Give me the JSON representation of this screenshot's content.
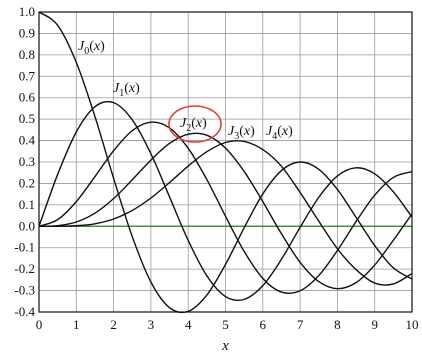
{
  "chart_data": {
    "type": "line",
    "title": "",
    "xlabel": "x",
    "ylabel": "",
    "xlim": [
      0,
      10
    ],
    "ylim": [
      -0.4,
      1.0
    ],
    "grid": true,
    "x_ticks": [
      "0",
      "1",
      "2",
      "3",
      "4",
      "5",
      "6",
      "7",
      "8",
      "9",
      "10"
    ],
    "y_ticks": [
      "1.0",
      "0.9",
      "0.8",
      "0.7",
      "0.6",
      "0.5",
      "0.4",
      "0.3",
      "0.2",
      "0.1",
      "0.0",
      "-0.1",
      "-0.2",
      "-0.3",
      "-0.4"
    ],
    "x": [
      0,
      0.5,
      1,
      1.5,
      2,
      2.5,
      3,
      3.5,
      4,
      4.5,
      5,
      5.5,
      6,
      6.5,
      7,
      7.5,
      8,
      8.5,
      9,
      9.5,
      10
    ],
    "series": [
      {
        "name": "J0(x)",
        "label_main": "J",
        "label_sub": "0",
        "label_arg": "(x)",
        "values": [
          1.0,
          0.938,
          0.765,
          0.512,
          0.224,
          -0.048,
          -0.26,
          -0.38,
          -0.397,
          -0.321,
          -0.178,
          -0.007,
          0.151,
          0.26,
          0.3,
          0.266,
          0.172,
          0.042,
          -0.09,
          -0.194,
          -0.246
        ]
      },
      {
        "name": "J1(x)",
        "label_main": "J",
        "label_sub": "1",
        "label_arg": "(x)",
        "values": [
          0.0,
          0.242,
          0.44,
          0.558,
          0.577,
          0.497,
          0.339,
          0.137,
          -0.066,
          -0.231,
          -0.328,
          -0.341,
          -0.277,
          -0.154,
          -0.005,
          0.135,
          0.235,
          0.273,
          0.245,
          0.161,
          0.043
        ]
      },
      {
        "name": "J2(x)",
        "label_main": "J",
        "label_sub": "2",
        "label_arg": "(x)",
        "values": [
          0.0,
          0.031,
          0.115,
          0.232,
          0.353,
          0.446,
          0.486,
          0.459,
          0.364,
          0.218,
          0.047,
          -0.117,
          -0.243,
          -0.307,
          -0.301,
          -0.23,
          -0.113,
          0.022,
          0.145,
          0.228,
          0.255
        ]
      },
      {
        "name": "J3(x)",
        "label_main": "J",
        "label_sub": "3",
        "label_arg": "(x)",
        "values": [
          0.0,
          0.003,
          0.02,
          0.061,
          0.129,
          0.217,
          0.309,
          0.387,
          0.43,
          0.425,
          0.365,
          0.256,
          0.115,
          -0.035,
          -0.168,
          -0.258,
          -0.291,
          -0.263,
          -0.181,
          -0.065,
          0.058
        ]
      },
      {
        "name": "J4(x)",
        "label_main": "J",
        "label_sub": "4",
        "label_arg": "(x)",
        "values": [
          0.0,
          0.0002,
          0.0025,
          0.0118,
          0.034,
          0.074,
          0.132,
          0.204,
          0.281,
          0.348,
          0.391,
          0.396,
          0.358,
          0.28,
          0.158,
          0.024,
          -0.105,
          -0.202,
          -0.265,
          -0.269,
          -0.22
        ]
      }
    ],
    "zero_line_color": "#2e7d32",
    "curve_color": "#111111",
    "highlight": {
      "series": "J2(x)",
      "shape": "ellipse",
      "color": "#e53935"
    }
  }
}
